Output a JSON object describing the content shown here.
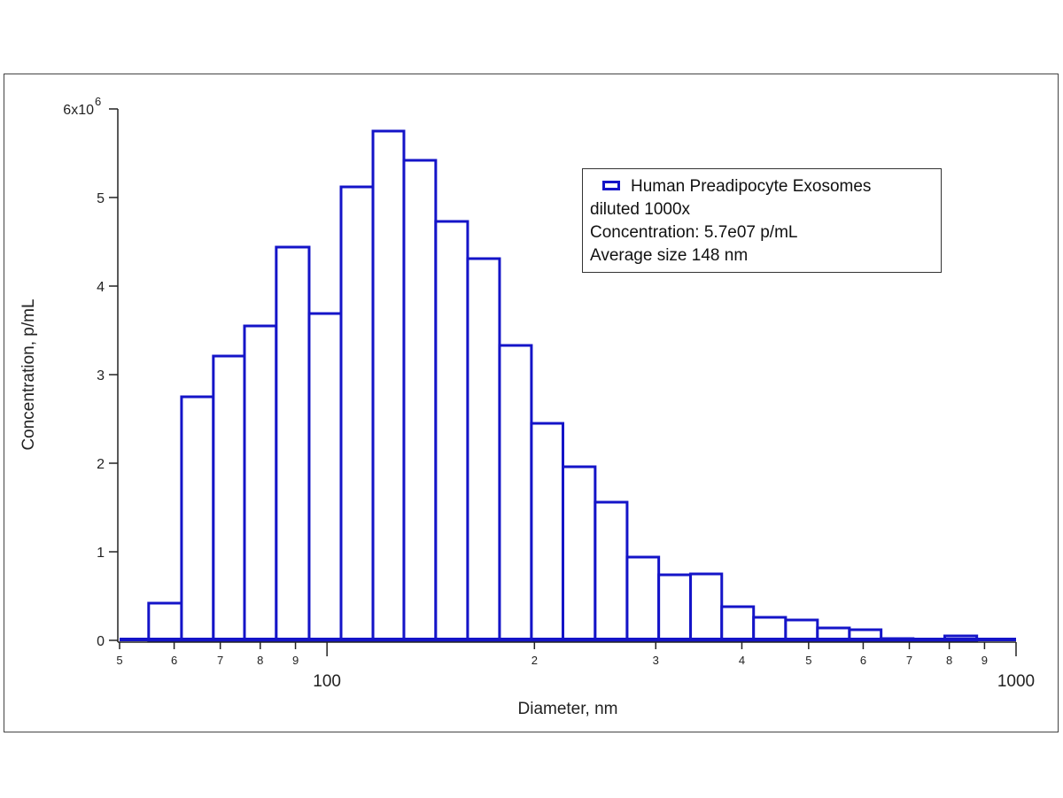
{
  "chart_data": {
    "type": "bar",
    "subtype": "histogram",
    "xscale": "log",
    "xlabel": "Diameter, nm",
    "ylabel": "Concentration, p/mL",
    "xlim": [
      50,
      1000
    ],
    "ylim": [
      0,
      6000000
    ],
    "y_ticks": [
      {
        "value": 0,
        "label": "0"
      },
      {
        "value": 1000000,
        "label": "1"
      },
      {
        "value": 2000000,
        "label": "2"
      },
      {
        "value": 3000000,
        "label": "3"
      },
      {
        "value": 4000000,
        "label": "4"
      },
      {
        "value": 5000000,
        "label": "5"
      },
      {
        "value": 6000000,
        "label": "6x10",
        "sup": "6"
      }
    ],
    "x_major_ticks": [
      {
        "value": 100,
        "label": "100"
      },
      {
        "value": 1000,
        "label": "1000"
      }
    ],
    "x_minor_ticks": [
      {
        "value": 50,
        "label": "5"
      },
      {
        "value": 60,
        "label": "6"
      },
      {
        "value": 70,
        "label": "7"
      },
      {
        "value": 80,
        "label": "8"
      },
      {
        "value": 90,
        "label": "9"
      },
      {
        "value": 200,
        "label": "2"
      },
      {
        "value": 300,
        "label": "3"
      },
      {
        "value": 400,
        "label": "4"
      },
      {
        "value": 500,
        "label": "5"
      },
      {
        "value": 600,
        "label": "6"
      },
      {
        "value": 700,
        "label": "7"
      },
      {
        "value": 800,
        "label": "8"
      },
      {
        "value": 900,
        "label": "9"
      }
    ],
    "bin_edges_nm": [
      55.1,
      61.5,
      68.4,
      75.9,
      84.4,
      94.2,
      104.8,
      116.6,
      129.3,
      143.8,
      160,
      178,
      198,
      220,
      245,
      272.6,
      303,
      337,
      374,
      416,
      463,
      515,
      573,
      637,
      709,
      788,
      877
    ],
    "values": [
      420000,
      2750000,
      3210000,
      3550000,
      4440000,
      3690000,
      5120000,
      5750000,
      5420000,
      4730000,
      4310000,
      3330000,
      2450000,
      1960000,
      1560000,
      940000,
      740000,
      750000,
      380000,
      260000,
      230000,
      140000,
      120000,
      20000,
      10000,
      50000
    ],
    "series_color": "#1414c8",
    "legend": {
      "placement": "top-right",
      "series_name": "Human Preadipocyte Exosomes",
      "lines": [
        "diluted 1000x",
        "Concentration: 5.7e07 p/mL",
        "Average size 148 nm"
      ]
    }
  }
}
